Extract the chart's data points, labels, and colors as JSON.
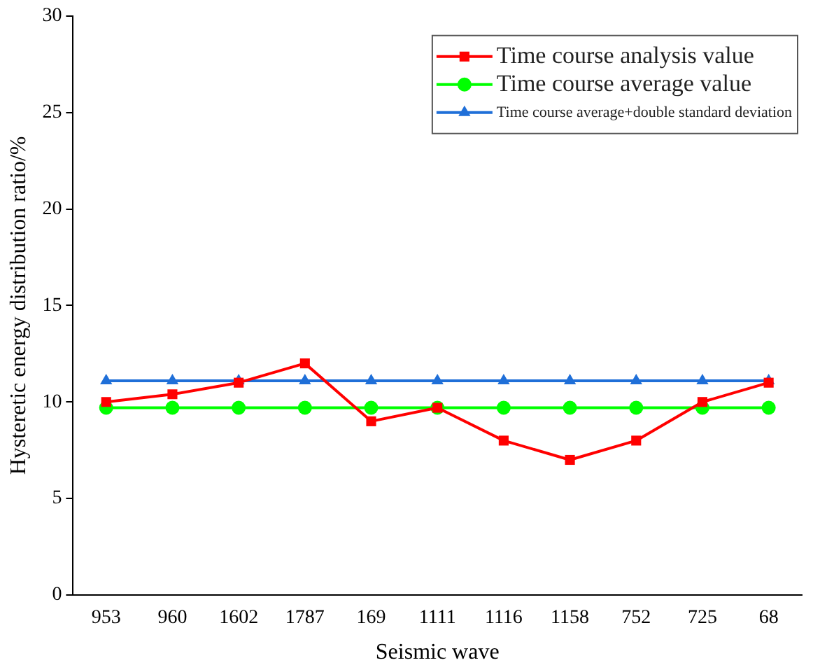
{
  "chart_data": {
    "type": "line",
    "xlabel": "Seismic wave",
    "ylabel": "Hysteretic energy distribution ratio/%",
    "categories": [
      "953",
      "960",
      "1602",
      "1787",
      "169",
      "1111",
      "1116",
      "1158",
      "752",
      "725",
      "68"
    ],
    "series": [
      {
        "name": "Time course analysis value",
        "color": "#ff0000",
        "marker": "square",
        "values": [
          10,
          10.4,
          11,
          12,
          9,
          9.7,
          8,
          7,
          8,
          10,
          11
        ]
      },
      {
        "name": "Time course average value",
        "color": "#00ff00",
        "marker": "circle",
        "values": [
          9.7,
          9.7,
          9.7,
          9.7,
          9.7,
          9.7,
          9.7,
          9.7,
          9.7,
          9.7,
          9.7
        ]
      },
      {
        "name": "Time course average+double standard deviation",
        "color": "#1f6fd8",
        "marker": "triangle",
        "values": [
          11.1,
          11.1,
          11.1,
          11.1,
          11.1,
          11.1,
          11.1,
          11.1,
          11.1,
          11.1,
          11.1
        ]
      }
    ],
    "ylim": [
      0,
      30
    ],
    "yticks": [
      0,
      5,
      10,
      15,
      20,
      25,
      30
    ],
    "grid": false,
    "legend": "top right",
    "line_style": "solid"
  }
}
